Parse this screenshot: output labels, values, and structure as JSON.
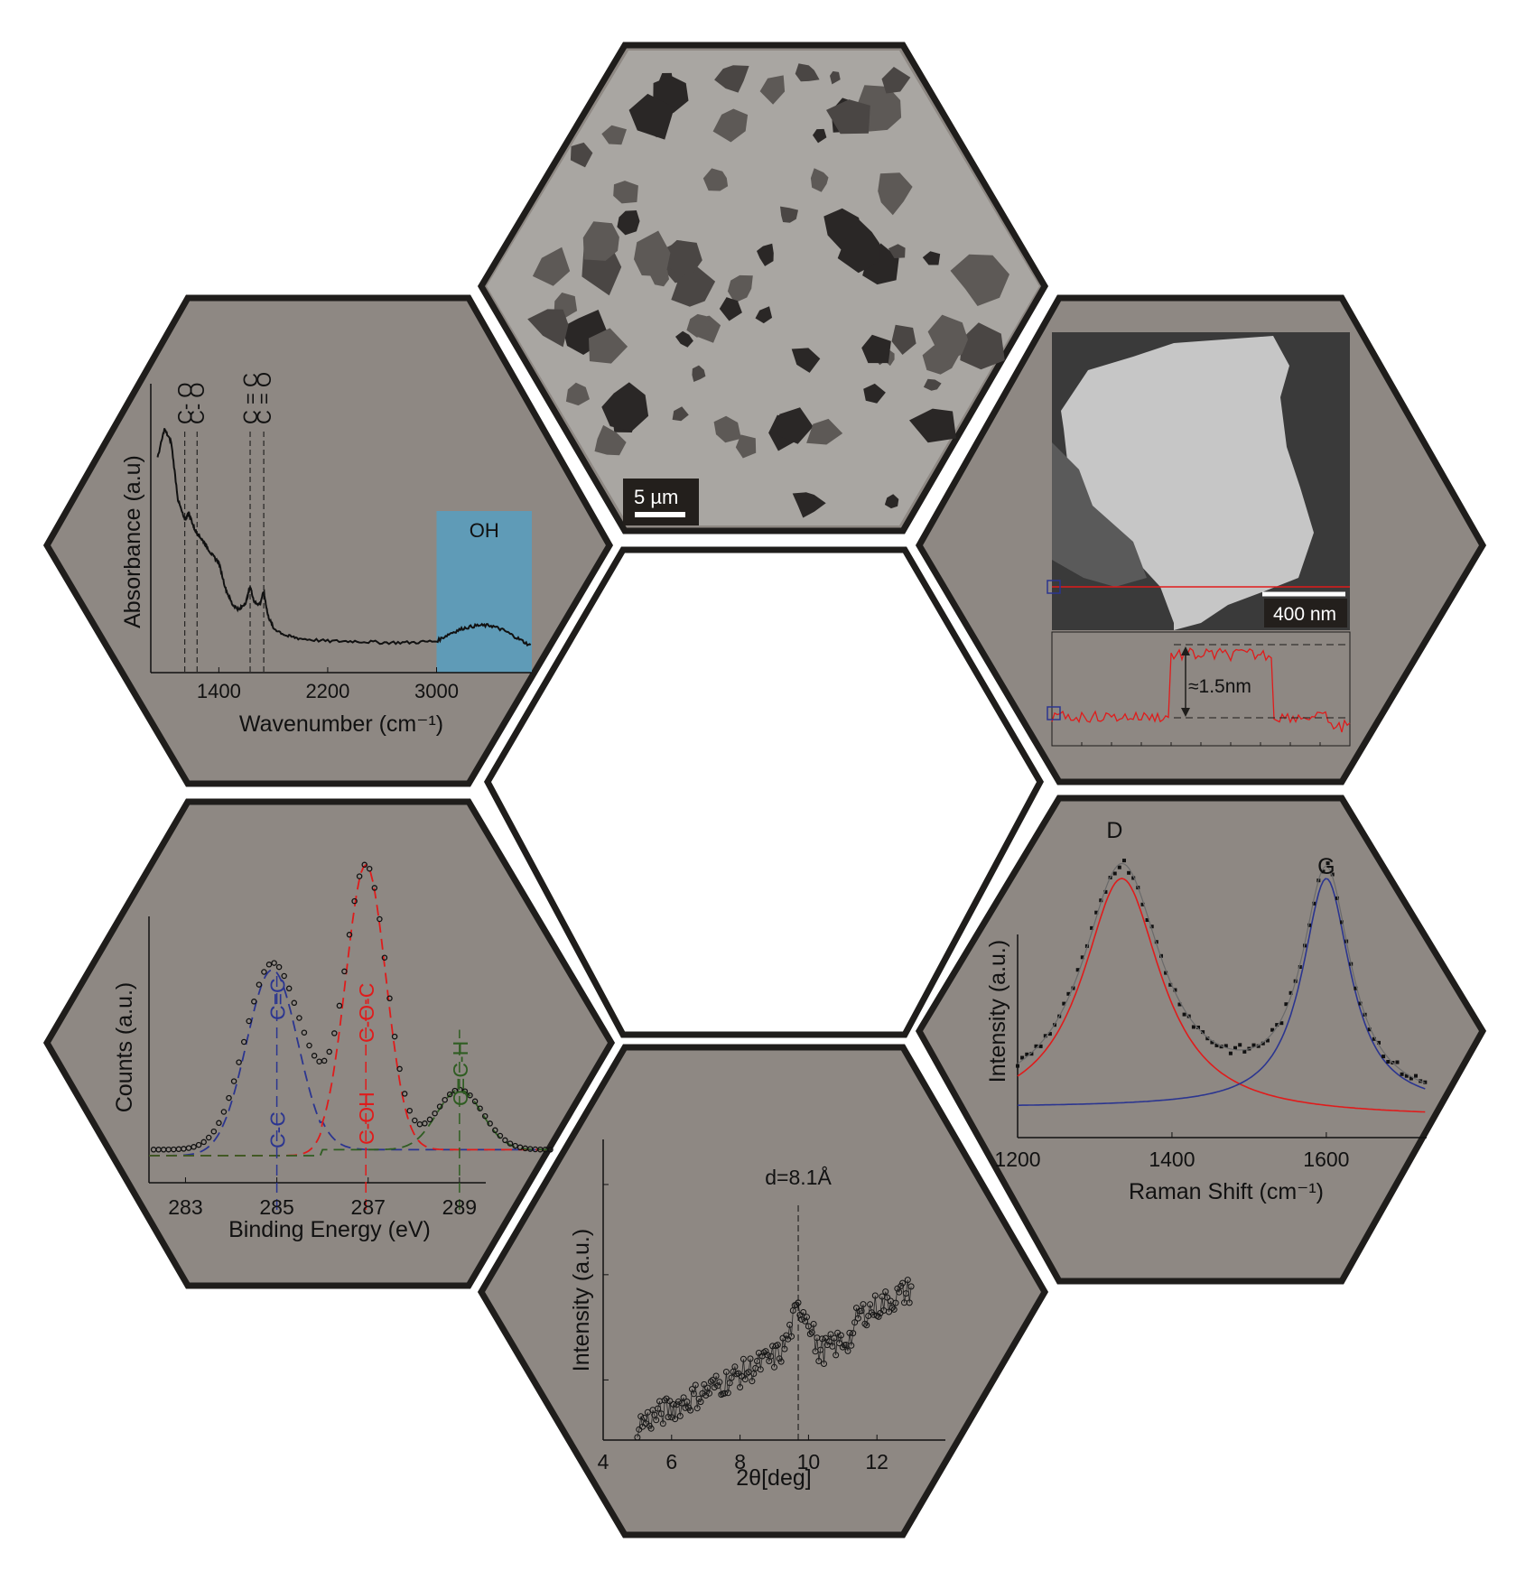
{
  "colors": {
    "panel_fill": "#8e8883",
    "panel_stroke": "#1f1d1b",
    "oh_band": "#5f9bb7",
    "red": "#e01b1b",
    "blue": "#2b3590",
    "green": "#2f5d22",
    "grey_fit": "#6a6a6a"
  },
  "chart_data": [
    {
      "id": "ftir",
      "type": "line",
      "xlabel": "Wavenumber (cm⁻¹)",
      "ylabel": "Absorbance (a.u)",
      "xticks": [
        1400,
        2200,
        3000
      ],
      "xlim": [
        900,
        3700
      ],
      "band": {
        "label": "OH",
        "x": [
          3000,
          3700
        ]
      },
      "peaks": [
        {
          "label": "C- O",
          "x": 1150
        },
        {
          "label": "C- O",
          "x": 1240
        },
        {
          "label": "C = C",
          "x": 1630
        },
        {
          "label": "C = O",
          "x": 1730
        }
      ],
      "x": [
        950,
        1000,
        1050,
        1100,
        1150,
        1180,
        1220,
        1260,
        1300,
        1350,
        1400,
        1450,
        1500,
        1550,
        1600,
        1630,
        1660,
        1700,
        1730,
        1760,
        1800,
        1900,
        2000,
        2200,
        2400,
        2600,
        2800,
        3000,
        3100,
        3200,
        3300,
        3400,
        3500,
        3600,
        3700
      ],
      "y": [
        0.82,
        0.93,
        0.88,
        0.66,
        0.58,
        0.61,
        0.55,
        0.52,
        0.49,
        0.45,
        0.42,
        0.32,
        0.26,
        0.24,
        0.27,
        0.33,
        0.27,
        0.26,
        0.31,
        0.22,
        0.17,
        0.14,
        0.13,
        0.12,
        0.12,
        0.115,
        0.115,
        0.12,
        0.15,
        0.17,
        0.18,
        0.18,
        0.16,
        0.13,
        0.1
      ]
    },
    {
      "id": "xps",
      "type": "scatter",
      "xlabel": "Binding Energy (eV)",
      "ylabel": "Counts (a.u.)",
      "xticks": [
        283,
        285,
        287,
        289
      ],
      "xlim": [
        282.2,
        291.0
      ],
      "components": [
        {
          "label": "C=C",
          "center": 284.9,
          "height": 0.62,
          "width": 0.8,
          "color": "blue"
        },
        {
          "label": "C-C",
          "center": 285.0,
          "height": 0.0,
          "width": 0.8,
          "color": "blue"
        },
        {
          "label": "C-O-C",
          "center": 286.95,
          "height": 0.95,
          "width": 0.62,
          "color": "red"
        },
        {
          "label": "C-OH",
          "center": 286.95,
          "height": 0.0,
          "width": 0.62,
          "color": "red"
        },
        {
          "label": "O=C-H",
          "center": 289.0,
          "height": 0.2,
          "width": 0.7,
          "color": "green"
        }
      ],
      "dividers": [
        285.0,
        286.95,
        289.0
      ]
    },
    {
      "id": "xrd",
      "type": "scatter",
      "xlabel": "2θ[deg]",
      "ylabel": "Intensity (a.u.)",
      "xticks": [
        4,
        6,
        8,
        10,
        12
      ],
      "xlim": [
        4,
        14
      ],
      "annotation": {
        "label": "d=8.1Å",
        "x": 9.7
      }
    },
    {
      "id": "raman",
      "type": "line",
      "xlabel": "Raman Shift (cm⁻¹)",
      "ylabel": "Intensity (a.u.)",
      "xticks": [
        1200,
        1400,
        1600
      ],
      "xlim": [
        1200,
        1730
      ],
      "peaks": [
        {
          "label": "D",
          "x": 1335,
          "height": 0.92,
          "hwhm": 62,
          "color": "red"
        },
        {
          "label": "G",
          "x": 1600,
          "height": 0.88,
          "hwhm": 38,
          "color": "blue"
        }
      ]
    },
    {
      "id": "afm-profile",
      "type": "line",
      "annotation": "≈1.5nm",
      "scale_bar": "400 nm"
    }
  ],
  "images": {
    "sem_scale_bar": "5 µm",
    "afm_scale_bar": "400 nm"
  }
}
